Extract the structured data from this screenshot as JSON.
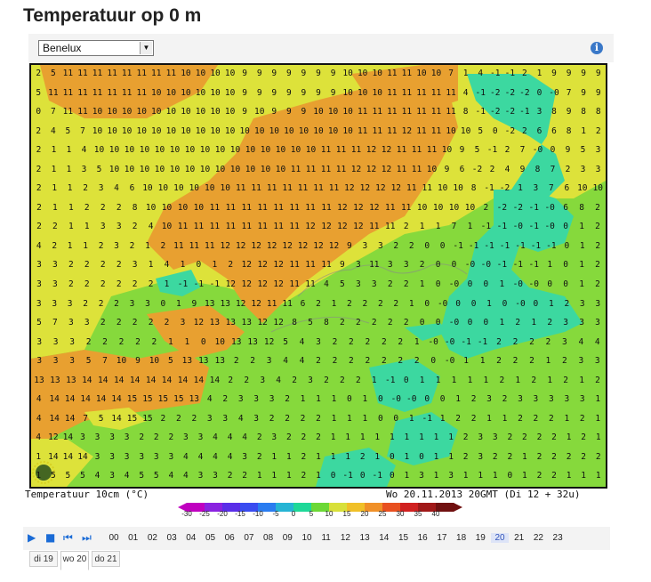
{
  "title": "Temperatuur op 0 m",
  "region_select": {
    "value": "Benelux"
  },
  "info_icon": "info-icon",
  "map": {
    "grid": [
      "25111111111111111110101010999999991010101110107141219999",
      "11111111111111101010101010999999991010101111111114122220079",
      "0711111010101010101010101099991010101010101111111181223898",
      "457101010101010101010101010101010101010101111111111105022668812",
      "1141010101010101010101010101010101010111111111111111010951270953",
      "11351010101010101010101010101010101111111111121111111111098224987323",
      "112346101010101010101010111111111111111212121111111111108123761010",
      "211222101010101011111111111111111112121212111111111111101012212212211",
      "21133241011111111111111111121212121212111111211711011012",
      "2112321211111111111212121212121212129332200111111012",
      "32222314101212121211111111119311332200011111012",
      "322222211111111212121111111145332222100001000012",
      "333222330191313121211116212222100010011233",
      "733222223121313131212858222222000012123333",
      "3322222110101313125432222222101122221234",
      "3357109105131313223442222222200101122221233",
      "1313131414141414141414142234232222110111112121212",
      "41414141414151515151342333211101000012322333331",
      "41414751415152222334322222111110021122112222121",
      "41214333322223344423222111111111112332222121",
      "11141433333344443211211121010112322122222",
      "5554345544332211121010131311012211"
    ],
    "rows": [
      [
        "2",
        "5",
        "11",
        "11",
        "11",
        "11",
        "11",
        "11",
        "11",
        "11",
        "10",
        "10",
        "10",
        "10",
        "9",
        "9",
        "9",
        "9",
        "9",
        "9",
        "9",
        "10",
        "10",
        "10",
        "11",
        "11",
        "10",
        "10",
        "7",
        "1",
        "4",
        "-1",
        "-1",
        "2",
        "1",
        "9",
        "9",
        "9",
        "9"
      ],
      [
        "5",
        "11",
        "11",
        "11",
        "11",
        "11",
        "11",
        "11",
        "10",
        "10",
        "10",
        "10",
        "10",
        "10",
        "9",
        "9",
        "9",
        "9",
        "9",
        "9",
        "9",
        "10",
        "10",
        "10",
        "11",
        "11",
        "11",
        "11",
        "11",
        "4",
        "-1",
        "-2",
        "-2",
        "-2",
        "0",
        "-0",
        "7",
        "9",
        "9"
      ],
      [
        "0",
        "7",
        "11",
        "11",
        "10",
        "10",
        "10",
        "10",
        "10",
        "10",
        "10",
        "10",
        "10",
        "10",
        "9",
        "10",
        "9",
        "9",
        "9",
        "10",
        "10",
        "10",
        "11",
        "11",
        "11",
        "11",
        "11",
        "11",
        "11",
        "8",
        "-1",
        "-2",
        "-2",
        "-1",
        "3",
        "8",
        "9",
        "8",
        "8"
      ],
      [
        "2",
        "4",
        "5",
        "7",
        "10",
        "10",
        "10",
        "10",
        "10",
        "10",
        "10",
        "10",
        "10",
        "10",
        "10",
        "10",
        "10",
        "10",
        "10",
        "10",
        "10",
        "10",
        "11",
        "11",
        "11",
        "12",
        "11",
        "11",
        "10",
        "10",
        "5",
        "0",
        "-2",
        "2",
        "6",
        "6",
        "8",
        "1",
        "2"
      ],
      [
        "2",
        "1",
        "1",
        "4",
        "10",
        "10",
        "10",
        "10",
        "10",
        "10",
        "10",
        "10",
        "10",
        "10",
        "10",
        "10",
        "10",
        "10",
        "10",
        "11",
        "11",
        "11",
        "12",
        "12",
        "11",
        "11",
        "11",
        "10",
        "9",
        "5",
        "-1",
        "2",
        "7",
        "-0",
        "0",
        "9",
        "5",
        "3"
      ],
      [
        "2",
        "1",
        "1",
        "3",
        "5",
        "10",
        "10",
        "10",
        "10",
        "10",
        "10",
        "10",
        "10",
        "10",
        "10",
        "10",
        "10",
        "11",
        "11",
        "11",
        "11",
        "12",
        "12",
        "12",
        "11",
        "11",
        "10",
        "9",
        "6",
        "-2",
        "2",
        "4",
        "9",
        "8",
        "7",
        "2",
        "3",
        "3"
      ],
      [
        "2",
        "1",
        "1",
        "2",
        "3",
        "4",
        "6",
        "10",
        "10",
        "10",
        "10",
        "10",
        "10",
        "11",
        "11",
        "11",
        "11",
        "11",
        "11",
        "11",
        "12",
        "12",
        "12",
        "12",
        "11",
        "11",
        "10",
        "10",
        "8",
        "-1",
        "-2",
        "1",
        "3",
        "7",
        "6",
        "10",
        "10"
      ],
      [
        "2",
        "1",
        "1",
        "2",
        "2",
        "2",
        "8",
        "10",
        "10",
        "10",
        "10",
        "11",
        "11",
        "11",
        "11",
        "11",
        "11",
        "11",
        "11",
        "12",
        "12",
        "12",
        "11",
        "11",
        "10",
        "10",
        "10",
        "10",
        "2",
        "-2",
        "-2",
        "-1",
        "-0",
        "6",
        "8",
        "2"
      ],
      [
        "2",
        "2",
        "1",
        "1",
        "3",
        "3",
        "2",
        "4",
        "10",
        "11",
        "11",
        "11",
        "11",
        "11",
        "11",
        "11",
        "11",
        "12",
        "12",
        "12",
        "12",
        "11",
        "11",
        "2",
        "1",
        "1",
        "7",
        "1",
        "-1",
        "-1",
        "-0",
        "-1",
        "-0",
        "0",
        "1",
        "2"
      ],
      [
        "4",
        "2",
        "1",
        "1",
        "2",
        "3",
        "2",
        "1",
        "2",
        "11",
        "11",
        "11",
        "12",
        "12",
        "12",
        "12",
        "12",
        "12",
        "12",
        "12",
        "9",
        "3",
        "3",
        "2",
        "2",
        "0",
        "0",
        "-1",
        "-1",
        "-1",
        "-1",
        "-1",
        "-1",
        "-1",
        "0",
        "1",
        "2"
      ],
      [
        "3",
        "3",
        "2",
        "2",
        "2",
        "2",
        "3",
        "1",
        "4",
        "1",
        "0",
        "1",
        "2",
        "12",
        "12",
        "12",
        "11",
        "11",
        "11",
        "9",
        "3",
        "11",
        "3",
        "3",
        "2",
        "0",
        "0",
        "-0",
        "-0",
        "-1",
        "-1",
        "-1",
        "1",
        "0",
        "1",
        "2"
      ],
      [
        "3",
        "3",
        "2",
        "2",
        "2",
        "2",
        "2",
        "2",
        "1",
        "-1",
        "-1",
        "-1",
        "12",
        "12",
        "12",
        "12",
        "11",
        "11",
        "4",
        "5",
        "3",
        "3",
        "2",
        "2",
        "1",
        "0",
        "-0",
        "0",
        "0",
        "1",
        "-0",
        "-0",
        "0",
        "0",
        "1",
        "2"
      ],
      [
        "3",
        "3",
        "3",
        "2",
        "2",
        "2",
        "3",
        "3",
        "0",
        "1",
        "9",
        "13",
        "13",
        "12",
        "12",
        "11",
        "11",
        "6",
        "2",
        "1",
        "2",
        "2",
        "2",
        "2",
        "1",
        "0",
        "-0",
        "0",
        "0",
        "1",
        "0",
        "-0",
        "0",
        "1",
        "2",
        "3",
        "3"
      ],
      [
        "5",
        "7",
        "3",
        "3",
        "2",
        "2",
        "2",
        "2",
        "2",
        "3",
        "12",
        "13",
        "13",
        "13",
        "12",
        "12",
        "8",
        "5",
        "8",
        "2",
        "2",
        "2",
        "2",
        "2",
        "0",
        "0",
        "-0",
        "0",
        "0",
        "1",
        "2",
        "1",
        "2",
        "3",
        "3",
        "3"
      ],
      [
        "3",
        "3",
        "3",
        "2",
        "2",
        "2",
        "2",
        "2",
        "1",
        "1",
        "0",
        "10",
        "13",
        "13",
        "12",
        "5",
        "4",
        "3",
        "2",
        "2",
        "2",
        "2",
        "2",
        "1",
        "-0",
        "-0",
        "-1",
        "-1",
        "2",
        "2",
        "2",
        "2",
        "3",
        "4",
        "4"
      ],
      [
        "3",
        "3",
        "3",
        "5",
        "7",
        "10",
        "9",
        "10",
        "5",
        "13",
        "13",
        "13",
        "2",
        "2",
        "3",
        "4",
        "4",
        "2",
        "2",
        "2",
        "2",
        "2",
        "2",
        "2",
        "0",
        "-0",
        "1",
        "1",
        "2",
        "2",
        "2",
        "1",
        "2",
        "3",
        "3"
      ],
      [
        "13",
        "13",
        "13",
        "14",
        "14",
        "14",
        "14",
        "14",
        "14",
        "14",
        "14",
        "14",
        "2",
        "2",
        "3",
        "4",
        "2",
        "3",
        "2",
        "2",
        "2",
        "1",
        "-1",
        "0",
        "1",
        "1",
        "1",
        "1",
        "1",
        "2",
        "1",
        "2",
        "1",
        "2",
        "1",
        "2"
      ],
      [
        "4",
        "14",
        "14",
        "14",
        "14",
        "14",
        "15",
        "15",
        "15",
        "15",
        "13",
        "4",
        "2",
        "3",
        "3",
        "3",
        "2",
        "1",
        "1",
        "1",
        "0",
        "1",
        "0",
        "-0",
        "-0",
        "0",
        "0",
        "1",
        "2",
        "3",
        "2",
        "3",
        "3",
        "3",
        "3",
        "3",
        "1"
      ],
      [
        "4",
        "14",
        "14",
        "7",
        "5",
        "14",
        "15",
        "15",
        "2",
        "2",
        "2",
        "3",
        "3",
        "4",
        "3",
        "2",
        "2",
        "2",
        "2",
        "1",
        "1",
        "1",
        "0",
        "0",
        "1",
        "-1",
        "1",
        "2",
        "2",
        "1",
        "1",
        "2",
        "2",
        "2",
        "1",
        "2",
        "1"
      ],
      [
        "4",
        "12",
        "14",
        "3",
        "3",
        "3",
        "3",
        "2",
        "2",
        "2",
        "3",
        "3",
        "4",
        "4",
        "4",
        "2",
        "3",
        "2",
        "2",
        "2",
        "1",
        "1",
        "1",
        "1",
        "1",
        "1",
        "1",
        "1",
        "1",
        "2",
        "3",
        "3",
        "2",
        "2",
        "2",
        "2",
        "1",
        "2",
        "1"
      ],
      [
        "1",
        "14",
        "14",
        "14",
        "3",
        "3",
        "3",
        "3",
        "3",
        "3",
        "4",
        "4",
        "4",
        "4",
        "3",
        "2",
        "1",
        "1",
        "2",
        "1",
        "1",
        "1",
        "2",
        "1",
        "0",
        "1",
        "0",
        "1",
        "1",
        "2",
        "3",
        "2",
        "2",
        "1",
        "2",
        "2",
        "2",
        "2",
        "2"
      ],
      [
        "1",
        "5",
        "5",
        "5",
        "4",
        "3",
        "4",
        "5",
        "5",
        "4",
        "4",
        "3",
        "3",
        "2",
        "2",
        "1",
        "1",
        "1",
        "2",
        "1",
        "0",
        "-1",
        "0",
        "-1",
        "0",
        "1",
        "3",
        "1",
        "3",
        "1",
        "1",
        "1",
        "0",
        "1",
        "2",
        "2",
        "1",
        "1",
        "1"
      ]
    ],
    "caption_left": "Temperatuur 10cm (°C)",
    "caption_right": "Wo 20.11.2013 20GMT (Di 12 + 32u)"
  },
  "legend": {
    "labels": [
      "-30",
      "-25",
      "-20",
      "-15",
      "-10",
      "-5",
      "0",
      "5",
      "10",
      "15",
      "20",
      "25",
      "30",
      "35",
      "40"
    ],
    "colors": [
      "#c000c0",
      "#8a22e0",
      "#5a2ee8",
      "#3a4cf0",
      "#2a7cf0",
      "#26b4d4",
      "#1ed898",
      "#6cd836",
      "#d8e03a",
      "#f0c028",
      "#f09028",
      "#e85020",
      "#d02020",
      "#a01818",
      "#701010"
    ]
  },
  "controls": {
    "play": "play-icon",
    "stop": "stop-icon",
    "prev": "skip-back-icon",
    "next": "skip-forward-icon",
    "hours": [
      "00",
      "01",
      "02",
      "03",
      "04",
      "05",
      "06",
      "07",
      "08",
      "09",
      "10",
      "11",
      "12",
      "13",
      "14",
      "15",
      "16",
      "17",
      "18",
      "19",
      "20",
      "21",
      "22",
      "23"
    ],
    "selected_hour": "20"
  },
  "days": [
    {
      "label": "di 19",
      "selected": false
    },
    {
      "label": "wo 20",
      "selected": true
    },
    {
      "label": "do 21",
      "selected": false
    }
  ]
}
